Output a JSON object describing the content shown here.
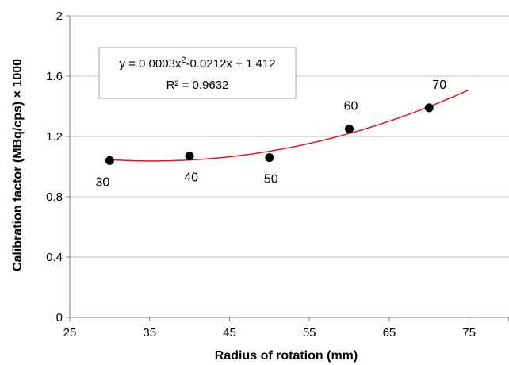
{
  "chart_data": {
    "type": "scatter",
    "title": "",
    "xlabel": "Radius of rotation (mm)",
    "ylabel": "Calibration factor (MBq/cps) × 1000",
    "xlim": [
      25,
      80
    ],
    "ylim": [
      0,
      2
    ],
    "x_ticks": [
      "25",
      "35",
      "45",
      "55",
      "65",
      "75"
    ],
    "y_ticks": [
      "0",
      "0.4",
      "0.8",
      "1.2",
      "1.6",
      "2"
    ],
    "grid": "horizontal",
    "points": [
      {
        "x": 30,
        "y": 1.04,
        "label": "30"
      },
      {
        "x": 40,
        "y": 1.07,
        "label": "40"
      },
      {
        "x": 50,
        "y": 1.06,
        "label": "50"
      },
      {
        "x": 60,
        "y": 1.25,
        "label": "60"
      },
      {
        "x": 70,
        "y": 1.39,
        "label": "70"
      }
    ],
    "trendline": {
      "type": "polynomial",
      "color": "#e8161c",
      "coefficients": [
        0.0003,
        -0.0212,
        1.412
      ],
      "x_range": [
        30,
        75
      ],
      "equation_prefix": "y = 0.0003x",
      "equation_sup": "2",
      "equation_suffix": "-0.0212x + 1.412",
      "r2": "R² = 0.9632"
    },
    "marker_color": "#000000"
  }
}
